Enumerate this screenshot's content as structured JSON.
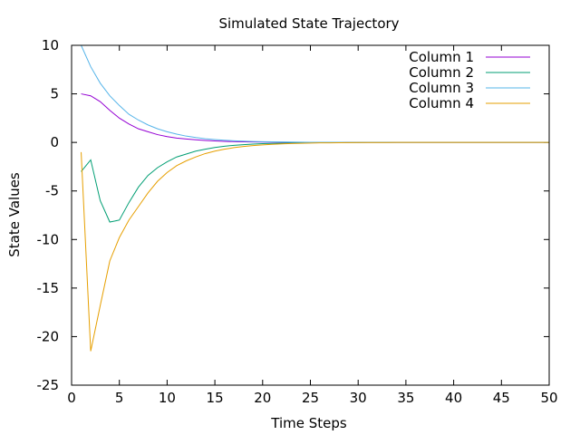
{
  "chart_data": {
    "type": "line",
    "title": "Simulated State Trajectory",
    "xlabel": "Time Steps",
    "ylabel": "State Values",
    "xlim": [
      0,
      50
    ],
    "ylim": [
      -25,
      10
    ],
    "x_ticks": [
      0,
      5,
      10,
      15,
      20,
      25,
      30,
      35,
      40,
      45,
      50
    ],
    "y_ticks": [
      -25,
      -20,
      -15,
      -10,
      -5,
      0,
      5,
      10
    ],
    "grid": false,
    "legend_position": "top-right",
    "series": [
      {
        "name": "Column 1",
        "color": "#9400d3",
        "x": [
          1,
          2,
          3,
          4,
          5,
          6,
          7,
          8,
          9,
          10,
          11,
          12,
          13,
          14,
          15,
          16,
          17,
          18,
          19,
          20,
          21,
          22,
          23,
          24,
          25,
          26,
          27,
          28,
          29,
          30,
          31,
          32,
          33,
          34,
          35,
          36,
          37,
          38,
          39,
          40,
          41,
          42,
          43,
          44,
          45,
          46,
          47,
          48,
          49,
          50
        ],
        "y": [
          5.0,
          4.8,
          4.2,
          3.3,
          2.5,
          1.9,
          1.4,
          1.1,
          0.8,
          0.6,
          0.45,
          0.35,
          0.27,
          0.2,
          0.15,
          0.11,
          0.08,
          0.06,
          0.05,
          0.04,
          0.03,
          0.02,
          0.015,
          0.01,
          0.008,
          0.006,
          0.004,
          0.003,
          0.002,
          0.001,
          0,
          0,
          0,
          0,
          0,
          0,
          0,
          0,
          0,
          0,
          0,
          0,
          0,
          0,
          0,
          0,
          0,
          0,
          0,
          0
        ]
      },
      {
        "name": "Column 2",
        "color": "#009e73",
        "x": [
          1,
          2,
          3,
          4,
          5,
          6,
          7,
          8,
          9,
          10,
          11,
          12,
          13,
          14,
          15,
          16,
          17,
          18,
          19,
          20,
          21,
          22,
          23,
          24,
          25,
          26,
          27,
          28,
          29,
          30,
          31,
          32,
          33,
          34,
          35,
          36,
          37,
          38,
          39,
          40,
          41,
          42,
          43,
          44,
          45,
          46,
          47,
          48,
          49,
          50
        ],
        "y": [
          -3.0,
          -1.8,
          -6.0,
          -8.2,
          -8.0,
          -6.2,
          -4.6,
          -3.4,
          -2.6,
          -2.0,
          -1.5,
          -1.2,
          -0.9,
          -0.7,
          -0.52,
          -0.4,
          -0.3,
          -0.23,
          -0.17,
          -0.13,
          -0.1,
          -0.075,
          -0.055,
          -0.04,
          -0.03,
          -0.022,
          -0.016,
          -0.012,
          -0.008,
          -0.005,
          -0.003,
          -0.002,
          -0.001,
          0,
          0,
          0,
          0,
          0,
          0,
          0,
          0,
          0,
          0,
          0,
          0,
          0,
          0,
          0,
          0,
          0
        ]
      },
      {
        "name": "Column 3",
        "color": "#56b4e9",
        "x": [
          1,
          2,
          3,
          4,
          5,
          6,
          7,
          8,
          9,
          10,
          11,
          12,
          13,
          14,
          15,
          16,
          17,
          18,
          19,
          20,
          21,
          22,
          23,
          24,
          25,
          26,
          27,
          28,
          29,
          30,
          31,
          32,
          33,
          34,
          35,
          36,
          37,
          38,
          39,
          40,
          41,
          42,
          43,
          44,
          45,
          46,
          47,
          48,
          49,
          50
        ],
        "y": [
          10.0,
          7.8,
          6.1,
          4.8,
          3.8,
          2.9,
          2.3,
          1.8,
          1.4,
          1.1,
          0.85,
          0.65,
          0.5,
          0.38,
          0.29,
          0.22,
          0.17,
          0.13,
          0.1,
          0.075,
          0.057,
          0.043,
          0.033,
          0.025,
          0.019,
          0.014,
          0.01,
          0.008,
          0.006,
          0.004,
          0.003,
          0.002,
          0.001,
          0,
          0,
          0,
          0,
          0,
          0,
          0,
          0,
          0,
          0,
          0,
          0,
          0,
          0,
          0,
          0,
          0
        ]
      },
      {
        "name": "Column 4",
        "color": "#e69f00",
        "x": [
          1,
          2,
          3,
          4,
          5,
          6,
          7,
          8,
          9,
          10,
          11,
          12,
          13,
          14,
          15,
          16,
          17,
          18,
          19,
          20,
          21,
          22,
          23,
          24,
          25,
          26,
          27,
          28,
          29,
          30,
          31,
          32,
          33,
          34,
          35,
          36,
          37,
          38,
          39,
          40,
          41,
          42,
          43,
          44,
          45,
          46,
          47,
          48,
          49,
          50
        ],
        "y": [
          -1.0,
          -21.5,
          -16.8,
          -12.2,
          -9.8,
          -8.0,
          -6.6,
          -5.2,
          -4.0,
          -3.1,
          -2.4,
          -1.9,
          -1.5,
          -1.15,
          -0.9,
          -0.7,
          -0.54,
          -0.42,
          -0.33,
          -0.26,
          -0.2,
          -0.15,
          -0.12,
          -0.09,
          -0.07,
          -0.05,
          -0.04,
          -0.03,
          -0.02,
          -0.015,
          -0.01,
          -0.008,
          -0.005,
          -0.003,
          -0.002,
          -0.001,
          0,
          0,
          0,
          0,
          0,
          0,
          0,
          0,
          0,
          0,
          0,
          0,
          0,
          0
        ]
      }
    ]
  }
}
